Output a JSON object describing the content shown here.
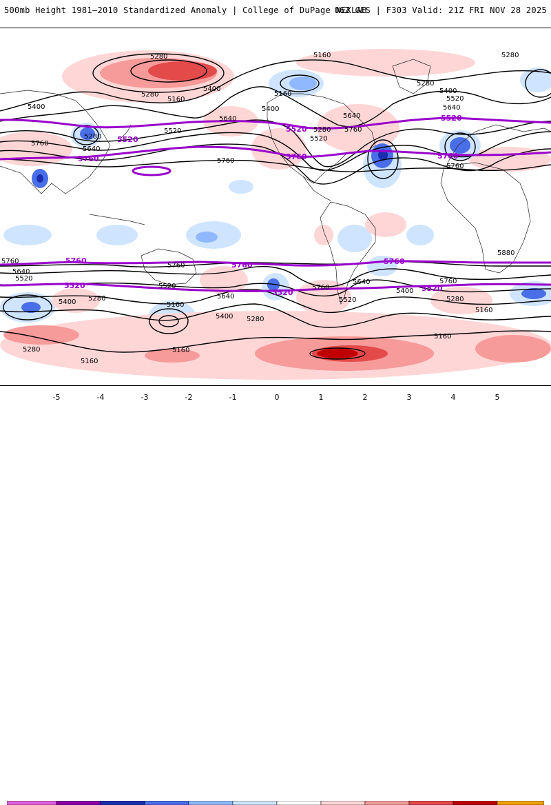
{
  "header": {
    "title": "500mb Height 1981–2010 Standardized Anomaly | College of DuPage NEXLAB",
    "run_info": "06Z GFS | F303 Valid: 21Z FRI NOV 28 2025"
  },
  "colors": {
    "pos1": "#ffd6d6",
    "pos2": "#f79a9a",
    "pos3": "#e34a4a",
    "pos4": "#c00000",
    "neg1": "#cfe4ff",
    "neg2": "#8fb8ff",
    "neg3": "#4a6ee8",
    "neg4": "#1a2fb0",
    "contour": "#000000",
    "highlight": "#9900cc"
  },
  "scale": {
    "ticks": [
      "-5",
      "-4",
      "-3",
      "-2",
      "-1",
      "0",
      "1",
      "2",
      "3",
      "4",
      "5"
    ],
    "colors": [
      "#e060e0",
      "#8b00a8",
      "#1a2fb0",
      "#4a6ee8",
      "#8fb8ff",
      "#cfe4ff",
      "#ffffff",
      "#ffd6d6",
      "#f79a9a",
      "#e34a4a",
      "#c00000",
      "#f0a000"
    ]
  },
  "contour_labels": {
    "c5280": "5280",
    "c5160": "5160",
    "c5400": "5400",
    "c5520": "5520",
    "c5640": "5640",
    "c5760": "5760",
    "c5880": "5880"
  },
  "highlight_labels": {
    "h5520": "5520",
    "h5760": "5760"
  }
}
